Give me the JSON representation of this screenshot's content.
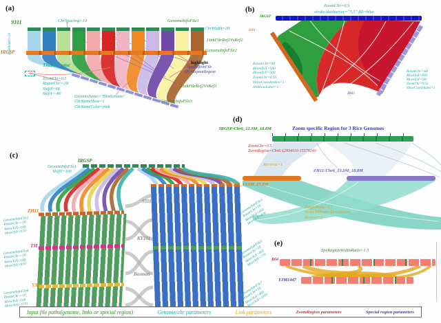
{
  "palette": {
    "cap_green": "#2e8b57",
    "param_teal": "#1fa8a0",
    "file_green": "#2e8b22",
    "link_orange": "#e09020",
    "zoom_red": "#c03030",
    "special_blue": "#3838b8"
  },
  "panels": {
    "a": {
      "label": "(a)",
      "top_genome": "9311",
      "mid_genome": "IRGSP",
      "bottom_genome": "ThisGenome",
      "left_rotated_note": "LinkWidth=10",
      "chr_spacing_note": "ChrSpacing=10",
      "genome_info_file1": "GenomeInfoFile1",
      "chr_width_note": "ChrWidth=20",
      "link_file_ref1_ref2": "LinkFileRef1VsRef2",
      "genome_info_file2": "GenomeInfoFile2",
      "highlight_note": "highlight",
      "spe_region_file": "SpeRegionFile",
      "sn_repeat_region": "SN=RepeatRegion",
      "link_file_ref2_ref3": "LinkFileRef2VsRef3",
      "genome_info_file3": "GenomeInfoFile3",
      "transform_params": [
        "ZoomChr=0.5",
        "RotateChr=-28",
        "ShiftX=68",
        "ShiftY=-80"
      ],
      "name_params": [
        "GenomeName=\"ThisGenome\"",
        "ChrNameShow=1",
        "ChrNameColor=pink"
      ],
      "chr_colors": [
        "#a9d5ec",
        "#2f7fc1",
        "#b7e095",
        "#2f9e41",
        "#f2a9ab",
        "#d62424",
        "#f2b3c3",
        "#f08a24",
        "#c9b8e8",
        "#7048a8",
        "#f7f2a0",
        "#a9642e"
      ]
    },
    "b": {
      "label": "(b)",
      "top_genome": "IRGSP",
      "left_genome": "9311",
      "right_genome": "ZH11",
      "zoom_note": "ZoomChr=0.5",
      "stroke_note": "stroke-dasharray=\"5,5\" fill=blue",
      "left_params": [
        "RotateChr=60",
        "MoveToX=500",
        "MoveToY=500",
        "ZoomChr=0.55",
        "ShowCoordinates=1",
        "NoShowLabel=1"
      ],
      "right_params": [
        "RotateChr=-60",
        "MoveToX=810",
        "MoveToY=500",
        "ZoomChr=0.55",
        "ShowCoordinates=1"
      ]
    },
    "c": {
      "label": "(c)",
      "top_genome": "IRGSP",
      "top_params": [
        "GenomeInfoFile1",
        "ShiftY=100"
      ],
      "left_genomes": [
        "ZH11",
        "TM",
        "YX1"
      ],
      "mid_genomes": [
        "9311",
        "KY131",
        "Basmati"
      ],
      "zh11_params": [
        "GenomeInfoFile2",
        "RotateChr=-10",
        "MoveToX=100",
        "MoveToY=570"
      ],
      "tm_params": [
        "GenomeInfoFile4",
        "RotateChr=-10",
        "MoveToX=100",
        "MoveToY=870"
      ],
      "yx1_params": [
        "GenomeInfoFile6",
        "RotateChr=-10",
        "MoveToX=100",
        "MoveToY=1170"
      ],
      "right_params_1": [
        "GenomeInfoFile3",
        "RotateChr=10",
        "MoveToX=450",
        "MoveToY=470"
      ],
      "right_params_2": [
        "GenomeInfoFile5",
        "RotateChr=10",
        "MoveToX=450",
        "MoveToY=770"
      ],
      "right_params_3": [
        "GenomeInfoFile7",
        "RotateChr=10",
        "MoveToX=450",
        "MoveToY=1070"
      ],
      "ribbon_colors": [
        "#a9d5ec",
        "#2f7fc1",
        "#2f9e41",
        "#d62424",
        "#f2a9ab",
        "#f08a24",
        "#e8d44a",
        "#c9b8e8",
        "#7048a8",
        "#a9642e",
        "#3bb0a8"
      ]
    },
    "d": {
      "label": "(d)",
      "title": "Zoom specific Region for 3 Rice Genomes",
      "irgsp_region": "IRGSP:Chr6_12.9M_18.8M",
      "s9311_region": "9311:Chr6_13.0M_17.8M",
      "zh11_region": "ZH11:Chr6_12.9M_18.8M",
      "zoom_params": [
        "ZoomChr=0.5",
        "ZoomRegion=Chr6:12934110-15579240"
      ],
      "reverse_note": "Reverse=1",
      "bottom_params": [
        "HeightRatio=1.1",
        "StyleUpDown=DownDown",
        "Reverse=1"
      ]
    },
    "e": {
      "label": "(e)",
      "note": "SpeRegionWidthRatio=1.5",
      "top_genome": "R64",
      "bottom_genome": "YJM1447"
    }
  },
  "legend": {
    "items": [
      {
        "text": "Input file paths(genome, links or special region)",
        "color": "#2e8b22"
      },
      {
        "text": "Genome/chr parameters",
        "color": "#1fa8a0"
      },
      {
        "text": "Link parameters",
        "color": "#e0a020"
      },
      {
        "text": "ZoomRegion parameters",
        "color": "#c03030"
      },
      {
        "text": "Special region parameters",
        "color": "#3838b8"
      }
    ]
  }
}
